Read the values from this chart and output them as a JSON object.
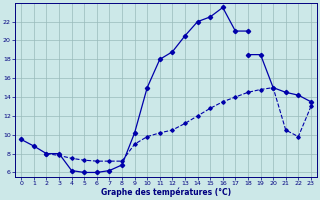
{
  "xlabel": "Graphe des températures (°C)",
  "bg_color": "#cce8e8",
  "line_color": "#0000aa",
  "grid_color": "#99bbbb",
  "ylim": [
    5.5,
    24.0
  ],
  "xlim": [
    -0.5,
    23.5
  ],
  "yticks": [
    6,
    8,
    10,
    12,
    14,
    16,
    18,
    20,
    22
  ],
  "xticks": [
    0,
    1,
    2,
    3,
    4,
    5,
    6,
    7,
    8,
    9,
    10,
    11,
    12,
    13,
    14,
    15,
    16,
    17,
    18,
    19,
    20,
    21,
    22,
    23
  ],
  "curve1_x": [
    0,
    1,
    2,
    3,
    4,
    5,
    6,
    7,
    8,
    9,
    10,
    11,
    12,
    13,
    14,
    15,
    16,
    17,
    18
  ],
  "curve1_y": [
    9.5,
    8.8,
    8.0,
    8.0,
    6.2,
    6.0,
    6.0,
    6.2,
    6.8,
    10.2,
    15.0,
    18.0,
    18.8,
    20.5,
    22.0,
    22.5,
    23.5,
    21.0,
    21.0
  ],
  "curve2_x": [
    18,
    19,
    20,
    21,
    22,
    23
  ],
  "curve2_y": [
    18.5,
    18.5,
    15.0,
    14.5,
    14.2,
    13.5
  ],
  "curve3_x": [
    2,
    3,
    4,
    5,
    6,
    7,
    8,
    9,
    10,
    11,
    12,
    13,
    14,
    15,
    16,
    17,
    18,
    19,
    20,
    21,
    22,
    23
  ],
  "curve3_y": [
    8.0,
    7.8,
    7.5,
    7.3,
    7.2,
    7.2,
    7.2,
    9.0,
    9.8,
    10.2,
    10.5,
    11.2,
    12.0,
    12.8,
    13.5,
    14.0,
    14.5,
    14.8,
    15.0,
    10.5,
    9.8,
    13.0
  ]
}
